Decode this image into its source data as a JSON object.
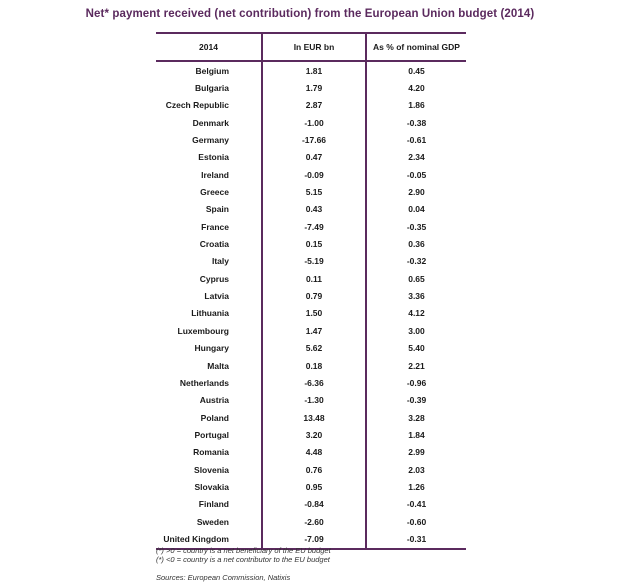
{
  "title": "Net* payment received (net contribution) from the European Union budget (2014)",
  "headers": [
    "2014",
    "In EUR bn",
    "As % of nominal GDP"
  ],
  "rows": [
    {
      "country": "Belgium",
      "eur_bn": "1.81",
      "pct_gdp": "0.45"
    },
    {
      "country": "Bulgaria",
      "eur_bn": "1.79",
      "pct_gdp": "4.20"
    },
    {
      "country": "Czech Republic",
      "eur_bn": "2.87",
      "pct_gdp": "1.86"
    },
    {
      "country": "Denmark",
      "eur_bn": "-1.00",
      "pct_gdp": "-0.38"
    },
    {
      "country": "Germany",
      "eur_bn": "-17.66",
      "pct_gdp": "-0.61"
    },
    {
      "country": "Estonia",
      "eur_bn": "0.47",
      "pct_gdp": "2.34"
    },
    {
      "country": "Ireland",
      "eur_bn": "-0.09",
      "pct_gdp": "-0.05"
    },
    {
      "country": "Greece",
      "eur_bn": "5.15",
      "pct_gdp": "2.90"
    },
    {
      "country": "Spain",
      "eur_bn": "0.43",
      "pct_gdp": "0.04"
    },
    {
      "country": "France",
      "eur_bn": "-7.49",
      "pct_gdp": "-0.35"
    },
    {
      "country": "Croatia",
      "eur_bn": "0.15",
      "pct_gdp": "0.36"
    },
    {
      "country": "Italy",
      "eur_bn": "-5.19",
      "pct_gdp": "-0.32"
    },
    {
      "country": "Cyprus",
      "eur_bn": "0.11",
      "pct_gdp": "0.65"
    },
    {
      "country": "Latvia",
      "eur_bn": "0.79",
      "pct_gdp": "3.36"
    },
    {
      "country": "Lithuania",
      "eur_bn": "1.50",
      "pct_gdp": "4.12"
    },
    {
      "country": "Luxembourg",
      "eur_bn": "1.47",
      "pct_gdp": "3.00"
    },
    {
      "country": "Hungary",
      "eur_bn": "5.62",
      "pct_gdp": "5.40"
    },
    {
      "country": "Malta",
      "eur_bn": "0.18",
      "pct_gdp": "2.21"
    },
    {
      "country": "Netherlands",
      "eur_bn": "-6.36",
      "pct_gdp": "-0.96"
    },
    {
      "country": "Austria",
      "eur_bn": "-1.30",
      "pct_gdp": "-0.39"
    },
    {
      "country": "Poland",
      "eur_bn": "13.48",
      "pct_gdp": "3.28"
    },
    {
      "country": "Portugal",
      "eur_bn": "3.20",
      "pct_gdp": "1.84"
    },
    {
      "country": "Romania",
      "eur_bn": "4.48",
      "pct_gdp": "2.99"
    },
    {
      "country": "Slovenia",
      "eur_bn": "0.76",
      "pct_gdp": "2.03"
    },
    {
      "country": "Slovakia",
      "eur_bn": "0.95",
      "pct_gdp": "1.26"
    },
    {
      "country": "Finland",
      "eur_bn": "-0.84",
      "pct_gdp": "-0.41"
    },
    {
      "country": "Sweden",
      "eur_bn": "-2.60",
      "pct_gdp": "-0.60"
    },
    {
      "country": "United Kingdom",
      "eur_bn": "-7.09",
      "pct_gdp": "-0.31"
    }
  ],
  "notes": [
    "(*) >0 = country is a net beneficiary of the EU budget",
    "(*) <0 = country is a net contributor to the EU budget"
  ],
  "source": "Sources: European Commission, Natixis",
  "colors": {
    "accent": "#5b2a5e"
  }
}
